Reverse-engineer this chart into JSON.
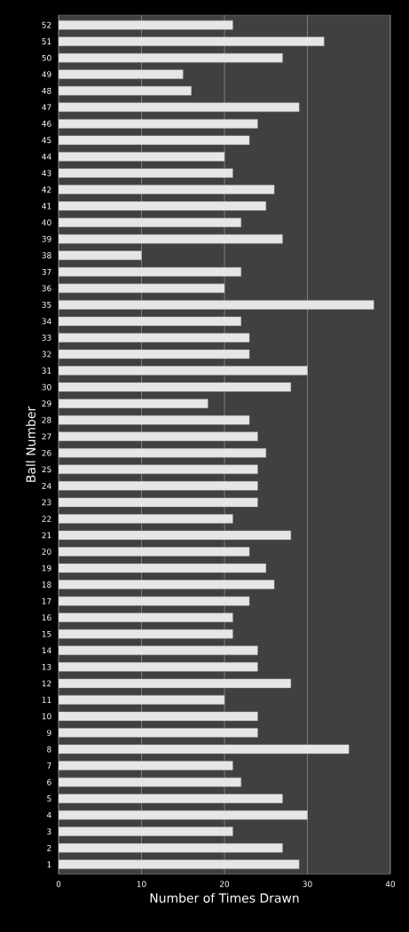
{
  "chart_data": {
    "type": "bar",
    "orientation": "horizontal",
    "xlabel": "Number of Times Drawn",
    "ylabel": "Ball Number",
    "categories": [
      "52",
      "51",
      "50",
      "49",
      "48",
      "47",
      "46",
      "45",
      "44",
      "43",
      "42",
      "41",
      "40",
      "39",
      "38",
      "37",
      "36",
      "35",
      "34",
      "33",
      "32",
      "31",
      "30",
      "29",
      "28",
      "27",
      "26",
      "25",
      "24",
      "23",
      "22",
      "21",
      "20",
      "19",
      "18",
      "17",
      "16",
      "15",
      "14",
      "13",
      "12",
      "11",
      "10",
      "9",
      "8",
      "7",
      "6",
      "5",
      "4",
      "3",
      "2",
      "1"
    ],
    "values": [
      21,
      32,
      27,
      15,
      16,
      29,
      24,
      23,
      20,
      21,
      26,
      25,
      22,
      27,
      10,
      22,
      20,
      38,
      22,
      23,
      23,
      30,
      28,
      18,
      23,
      24,
      25,
      24,
      24,
      24,
      21,
      28,
      23,
      25,
      26,
      23,
      21,
      21,
      24,
      24,
      28,
      20,
      24,
      24,
      35,
      21,
      22,
      27,
      30,
      21,
      27,
      29
    ],
    "color": "#e6e6e6",
    "xlim": [
      0,
      40
    ],
    "xticks": [
      0,
      10,
      20,
      30,
      40
    ],
    "grid": "x"
  }
}
